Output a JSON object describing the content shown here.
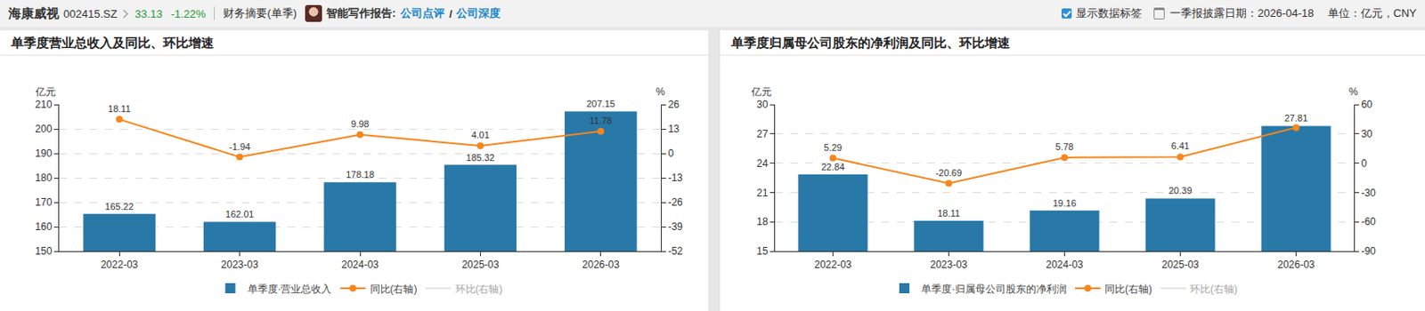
{
  "header": {
    "company": "海康威视",
    "code": "002415.SZ",
    "price": "33.13",
    "change": "-1.22%",
    "tab": "财务摘要(单季)",
    "ai_label": "智能写作报告:",
    "links": [
      "公司点评",
      "公司深度"
    ],
    "separator": "/",
    "checkbox": "显示数据标签",
    "date_label": "一季报披露日期：2026-04-18",
    "unit": "单位：亿元，CNY"
  },
  "chart_data": [
    {
      "type": "bar",
      "title": "单季度营业总收入及同比、环比增速",
      "categories": [
        "2022-03",
        "2023-03",
        "2024-03",
        "2025-03",
        "2026-03"
      ],
      "ylabel": "亿元",
      "y2label": "%",
      "series": [
        {
          "name": "单季度·营业总收入",
          "type": "bar",
          "color": "#2878a8",
          "values": [
            165.22,
            162.01,
            178.18,
            185.32,
            207.15
          ]
        },
        {
          "name": "同比(右轴)",
          "type": "line",
          "marker": "circle",
          "color": "#f7861c",
          "axis": "y2",
          "values": [
            18.11,
            -1.94,
            9.98,
            4.01,
            11.78
          ]
        },
        {
          "name": "环比(右轴)",
          "type": "line",
          "color": "#c8c8c8",
          "axis": "y2",
          "values": [
            null,
            null,
            null,
            null,
            null
          ]
        }
      ],
      "ylim": [
        150,
        210
      ],
      "yticks": [
        150,
        160,
        170,
        180,
        190,
        200,
        210
      ],
      "y2lim": [
        -52,
        26
      ],
      "y2ticks": [
        -52,
        -39,
        -26,
        -13,
        0,
        13,
        26
      ],
      "grid": true,
      "legend": "bottom",
      "data_labels": true
    },
    {
      "type": "bar",
      "title": "单季度归属母公司股东的净利润及同比、环比增速",
      "categories": [
        "2022-03",
        "2023-03",
        "2024-03",
        "2025-03",
        "2026-03"
      ],
      "ylabel": "亿元",
      "y2label": "%",
      "series": [
        {
          "name": "单季度·归属母公司股东的净利润",
          "type": "bar",
          "color": "#2878a8",
          "values": [
            22.84,
            18.11,
            19.16,
            20.39,
            27.81
          ]
        },
        {
          "name": "同比(右轴)",
          "type": "line",
          "marker": "circle",
          "color": "#f7861c",
          "axis": "y2",
          "values": [
            5.29,
            -20.69,
            5.78,
            6.41,
            36.39
          ],
          "value_labels": [
            "5.29",
            "-20.69",
            "5.78",
            "6.41",
            null
          ]
        },
        {
          "name": "环比(右轴)",
          "type": "line",
          "color": "#c8c8c8",
          "axis": "y2",
          "values": [
            null,
            null,
            null,
            null,
            null
          ]
        }
      ],
      "ylim": [
        15,
        30
      ],
      "yticks": [
        15,
        18,
        21,
        24,
        27,
        30
      ],
      "y2lim": [
        -90,
        60
      ],
      "y2ticks": [
        -90,
        -60,
        -30,
        0,
        30,
        60
      ],
      "grid": true,
      "legend": "bottom",
      "data_labels": true
    }
  ]
}
